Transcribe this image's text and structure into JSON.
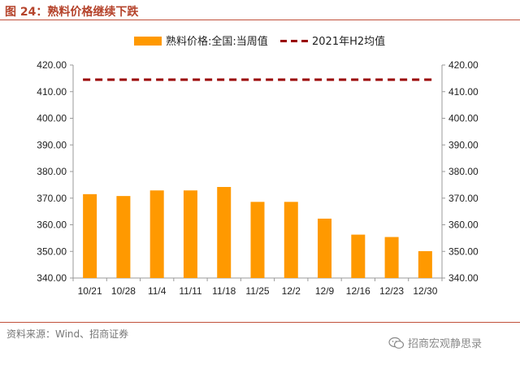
{
  "header": {
    "title": "图 24：熟料价格继续下跌"
  },
  "footer": {
    "source": "资料来源：Wind、招商证券",
    "watermark": "招商宏观静思录"
  },
  "colors": {
    "bar": "#FF9900",
    "ref_line": "#990000",
    "title": "#b5432b"
  },
  "chart_data": {
    "type": "bar",
    "title": "",
    "xlabel": "",
    "ylabel": "",
    "categories": [
      "10/21",
      "10/28",
      "11/4",
      "11/11",
      "11/18",
      "11/25",
      "12/2",
      "12/9",
      "12/16",
      "12/23",
      "12/30"
    ],
    "series": [
      {
        "name": "熟料价格:全国:当周值",
        "type": "bar",
        "values": [
          371.5,
          370.8,
          372.9,
          372.9,
          374.2,
          368.6,
          368.6,
          362.3,
          356.3,
          355.4,
          350.1
        ]
      },
      {
        "name": "2021年H2均值",
        "type": "line",
        "style": "dashed",
        "value": 414.5
      }
    ],
    "ylim": [
      340,
      420
    ],
    "yticks": [
      "420.00",
      "410.00",
      "400.00",
      "390.00",
      "380.00",
      "370.00",
      "360.00",
      "350.00",
      "340.00"
    ],
    "secondary_axis": {
      "ylim": [
        340,
        420
      ],
      "same_as_primary": true
    },
    "legend": "top",
    "grid": false
  }
}
